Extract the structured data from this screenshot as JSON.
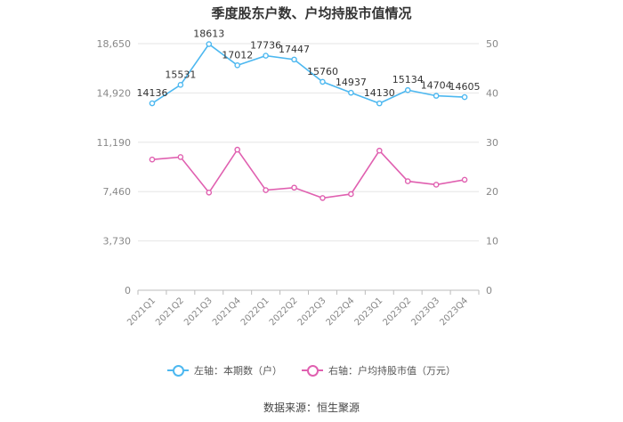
{
  "title": "季度股东户数、户均持股市值情况",
  "source": "数据来源：恒生聚源",
  "colors": {
    "left": "#4db8f0",
    "right": "#e060b0",
    "grid": "#e6e6e6",
    "axis": "#888888"
  },
  "chart_data": {
    "type": "line",
    "categories": [
      "2021Q1",
      "2021Q2",
      "2021Q3",
      "2021Q4",
      "2022Q1",
      "2022Q2",
      "2022Q3",
      "2022Q4",
      "2023Q1",
      "2023Q2",
      "2023Q3",
      "2023Q4"
    ],
    "y_left": {
      "ylim": [
        0,
        18650
      ],
      "ticks": [
        "0",
        "3,730",
        "7,460",
        "11,190",
        "14,920",
        "18,650"
      ],
      "tick_values": [
        0,
        3730,
        7460,
        11190,
        14920,
        18650
      ]
    },
    "y_right": {
      "ylim": [
        0,
        50
      ],
      "ticks": [
        "0",
        "10",
        "20",
        "30",
        "40",
        "50"
      ],
      "tick_values": [
        0,
        10,
        20,
        30,
        40,
        50
      ]
    },
    "grid": "horizontal",
    "legend_placement": "bottom-center",
    "series": [
      {
        "name": "左轴：本期数（户）",
        "axis": "left",
        "values": [
          14136,
          15531,
          18613,
          17012,
          17736,
          17447,
          15760,
          14937,
          14130,
          15134,
          14704,
          14605
        ],
        "labels": [
          "14136",
          "15531",
          "18613",
          "17012",
          "17736",
          "17447",
          "15760",
          "14937",
          "14130",
          "15134",
          "14704",
          "14605"
        ]
      },
      {
        "name": "右轴：户均持股市值（万元）",
        "axis": "right",
        "values": [
          26.5,
          27.0,
          19.8,
          28.5,
          20.3,
          20.8,
          18.7,
          19.5,
          28.3,
          22.1,
          21.4,
          22.4
        ]
      }
    ]
  }
}
